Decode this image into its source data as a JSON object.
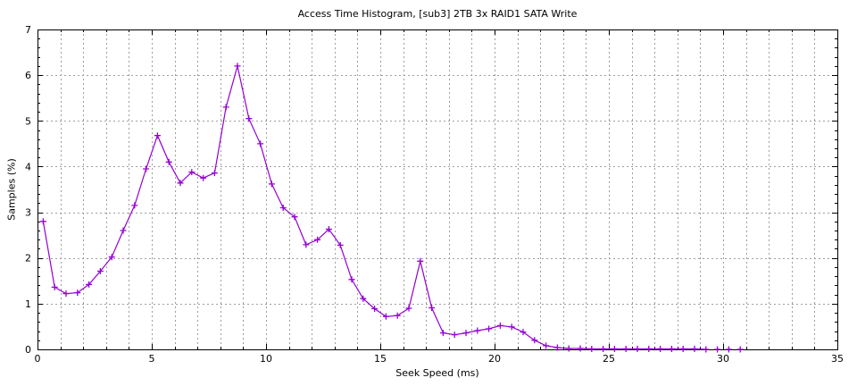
{
  "chart_data": {
    "type": "line",
    "title": "Access Time Histogram, [sub3] 2TB 3x RAID1 SATA Write",
    "xlabel": "Seek Speed (ms)",
    "ylabel": "Samples (%)",
    "xlim": [
      0,
      35
    ],
    "ylim": [
      0,
      7
    ],
    "xticks_major": [
      0,
      5,
      10,
      15,
      20,
      25,
      30,
      35
    ],
    "x_minor_step": 1,
    "yticks_major": [
      0,
      1,
      2,
      3,
      4,
      5,
      6,
      7
    ],
    "y_minor_step": 0.2,
    "grid": {
      "on": true,
      "vertical_step": 1,
      "horizontal_step": 1,
      "style": "dotted"
    },
    "legend_position": "none",
    "marker": "plus",
    "colors": {
      "line": "#9400d3",
      "grid": "#9e9e9e",
      "axis": "#000000",
      "background": "#ffffff"
    },
    "series": [
      {
        "name": "access-time-histogram",
        "points": [
          [
            0.25,
            2.8
          ],
          [
            0.75,
            1.36
          ],
          [
            1.25,
            1.22
          ],
          [
            1.75,
            1.24
          ],
          [
            2.25,
            1.42
          ],
          [
            2.75,
            1.71
          ],
          [
            3.25,
            2.02
          ],
          [
            3.75,
            2.6
          ],
          [
            4.25,
            3.15
          ],
          [
            4.75,
            3.95
          ],
          [
            5.25,
            4.68
          ],
          [
            5.75,
            4.1
          ],
          [
            6.25,
            3.64
          ],
          [
            6.75,
            3.88
          ],
          [
            7.25,
            3.75
          ],
          [
            7.75,
            3.86
          ],
          [
            8.25,
            5.3
          ],
          [
            8.75,
            6.2
          ],
          [
            9.25,
            5.05
          ],
          [
            9.75,
            4.5
          ],
          [
            10.25,
            3.62
          ],
          [
            10.75,
            3.1
          ],
          [
            11.25,
            2.9
          ],
          [
            11.75,
            2.29
          ],
          [
            12.25,
            2.4
          ],
          [
            12.75,
            2.63
          ],
          [
            13.25,
            2.28
          ],
          [
            13.75,
            1.53
          ],
          [
            14.25,
            1.11
          ],
          [
            14.75,
            0.89
          ],
          [
            15.25,
            0.72
          ],
          [
            15.75,
            0.74
          ],
          [
            16.25,
            0.9
          ],
          [
            16.75,
            1.93
          ],
          [
            17.25,
            0.91
          ],
          [
            17.75,
            0.36
          ],
          [
            18.25,
            0.32
          ],
          [
            18.75,
            0.36
          ],
          [
            19.25,
            0.41
          ],
          [
            19.75,
            0.45
          ],
          [
            20.25,
            0.52
          ],
          [
            20.75,
            0.49
          ],
          [
            21.25,
            0.38
          ],
          [
            21.75,
            0.2
          ],
          [
            22.25,
            0.08
          ],
          [
            22.75,
            0.04
          ],
          [
            23.25,
            0.02
          ],
          [
            23.75,
            0.02
          ],
          [
            24.25,
            0.01
          ],
          [
            24.75,
            0.01
          ],
          [
            25.25,
            0.01
          ],
          [
            25.75,
            0.01
          ],
          [
            26.25,
            0.01
          ],
          [
            26.75,
            0.01
          ],
          [
            27.25,
            0.01
          ],
          [
            27.75,
            0.01
          ],
          [
            28.25,
            0.01
          ],
          [
            28.75,
            0.01
          ],
          [
            29.25,
            0.0
          ]
        ],
        "marker_only_points": [
          [
            29.75,
            0.0
          ],
          [
            30.25,
            0.0
          ],
          [
            30.75,
            0.0
          ]
        ]
      }
    ]
  }
}
